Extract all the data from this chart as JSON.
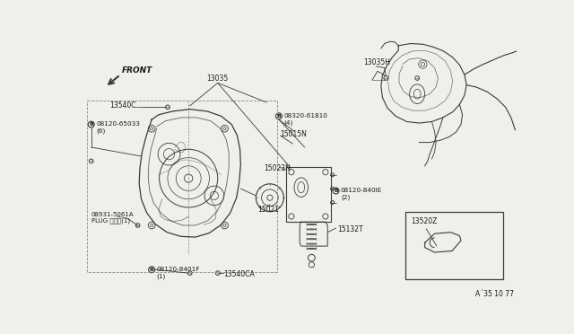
{
  "bg_color": "#f0efeb",
  "line_color": "#3a3a3a",
  "text_color": "#1a1a1a",
  "diagram_code": "A´35 10 77",
  "labels": {
    "FRONT": "FRONT",
    "13540C": "13540C",
    "b_08120_65033": "°08120-65033\n（6）",
    "13035": "13035",
    "b_08320_61810": "°08320-61810\n（4）",
    "15015N": "15015N",
    "15023N": "15023N",
    "15021": "15021",
    "b_08120_840lE": "°08120-840lE\n（2）",
    "15132T": "15132T",
    "08931_5061A": "08931-5061A\nPLUG プラグ（1）",
    "b_08120_8401F": "°08120-8401F\n（1）",
    "13540CA": "13540CA",
    "13035H": "13035H",
    "13520Z": "13520Z"
  }
}
